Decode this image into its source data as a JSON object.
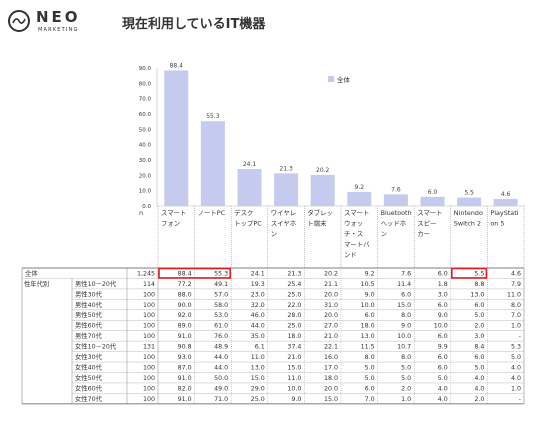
{
  "logo": {
    "name": "NEO",
    "tagline": "MARKETING"
  },
  "page": {
    "title": "現在利用しているIT機器"
  },
  "chart_data": {
    "type": "bar",
    "title": "現在利用しているIT機器",
    "legend": [
      "全体"
    ],
    "legend_position": "top-right",
    "n_label": "n",
    "ylim": [
      0,
      90
    ],
    "yticks": [
      "0.0",
      "10.0",
      "20.0",
      "30.0",
      "40.0",
      "50.0",
      "60.0",
      "70.0",
      "80.0",
      "90.0"
    ],
    "categories": [
      [
        "スマート",
        "フォン"
      ],
      [
        "ノートPC"
      ],
      [
        "デスク",
        "トップPC"
      ],
      [
        "ワイヤレ",
        "スイヤホ",
        "ン"
      ],
      [
        "タブレッ",
        "ト端末"
      ],
      [
        "スマート",
        "ウォッ",
        "チ・ス",
        "マートバ",
        "ンド"
      ],
      [
        "Bluetooth",
        "ヘッドホ",
        "ン"
      ],
      [
        "スマート",
        "スピー",
        "カー"
      ],
      [
        "Nintendo",
        "Switch 2"
      ],
      [
        "PlayStati",
        "on 5"
      ]
    ],
    "values": [
      88.4,
      55.3,
      24.1,
      21.3,
      20.2,
      9.2,
      7.6,
      6.0,
      5.5,
      4.6
    ],
    "bar_color": "#c5cbee",
    "highlight_color": "#e11b22",
    "group_label": "性年代別",
    "table": [
      {
        "label": "全体",
        "n": "1,245",
        "values": [
          "88.4",
          "55.3",
          "24.1",
          "21.3",
          "20.2",
          "9.2",
          "7.6",
          "6.0",
          "5.5",
          "4.6"
        ]
      },
      {
        "label": "男性10－20代",
        "n": "114",
        "values": [
          "77.2",
          "49.1",
          "19.3",
          "25.4",
          "21.1",
          "10.5",
          "11.4",
          "1.8",
          "8.8",
          "7.9"
        ]
      },
      {
        "label": "男性30代",
        "n": "100",
        "values": [
          "88.0",
          "57.0",
          "23.0",
          "25.0",
          "20.0",
          "9.0",
          "6.0",
          "3.0",
          "13.0",
          "11.0"
        ]
      },
      {
        "label": "男性40代",
        "n": "100",
        "values": [
          "90.0",
          "58.0",
          "32.0",
          "22.0",
          "31.0",
          "10.0",
          "15.0",
          "6.0",
          "6.0",
          "8.0"
        ]
      },
      {
        "label": "男性50代",
        "n": "100",
        "values": [
          "92.0",
          "53.0",
          "46.0",
          "28.0",
          "20.0",
          "6.0",
          "8.0",
          "9.0",
          "5.0",
          "7.0"
        ]
      },
      {
        "label": "男性60代",
        "n": "100",
        "values": [
          "89.0",
          "61.0",
          "44.0",
          "25.0",
          "27.0",
          "18.0",
          "9.0",
          "10.0",
          "2.0",
          "1.0"
        ]
      },
      {
        "label": "男性70代",
        "n": "100",
        "values": [
          "91.0",
          "76.0",
          "35.0",
          "18.0",
          "21.0",
          "13.0",
          "10.0",
          "6.0",
          "3.0",
          "-"
        ]
      },
      {
        "label": "女性10－20代",
        "n": "131",
        "values": [
          "90.8",
          "48.9",
          "6.1",
          "37.4",
          "22.1",
          "11.5",
          "10.7",
          "9.9",
          "8.4",
          "5.3"
        ]
      },
      {
        "label": "女性30代",
        "n": "100",
        "values": [
          "93.0",
          "44.0",
          "11.0",
          "21.0",
          "16.0",
          "8.0",
          "8.0",
          "6.0",
          "6.0",
          "5.0"
        ]
      },
      {
        "label": "女性40代",
        "n": "100",
        "values": [
          "87.0",
          "44.0",
          "13.0",
          "15.0",
          "17.0",
          "5.0",
          "5.0",
          "6.0",
          "5.0",
          "4.0"
        ]
      },
      {
        "label": "女性50代",
        "n": "100",
        "values": [
          "91.0",
          "50.0",
          "15.0",
          "11.0",
          "18.0",
          "5.0",
          "5.0",
          "5.0",
          "4.0",
          "4.0"
        ]
      },
      {
        "label": "女性60代",
        "n": "100",
        "values": [
          "82.0",
          "49.0",
          "29.0",
          "10.0",
          "20.0",
          "6.0",
          "2.0",
          "4.0",
          "4.0",
          "1.0"
        ]
      },
      {
        "label": "女性70代",
        "n": "100",
        "values": [
          "91.0",
          "71.0",
          "25.0",
          "9.0",
          "15.0",
          "7.0",
          "1.0",
          "4.0",
          "2.0",
          "-"
        ]
      }
    ],
    "highlights": [
      {
        "row": 0,
        "cols": [
          0,
          1
        ]
      },
      {
        "row": 0,
        "cols": [
          8
        ]
      }
    ]
  }
}
